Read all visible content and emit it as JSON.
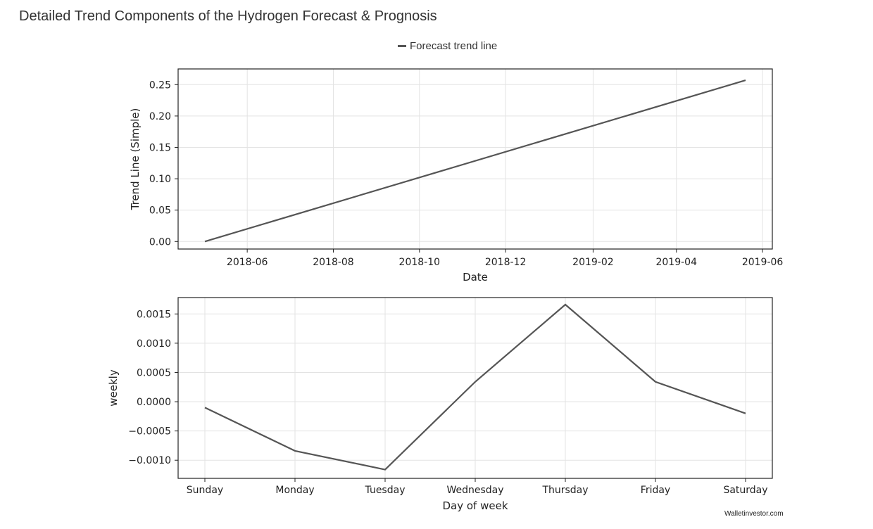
{
  "page": {
    "title": "Detailed Trend Components of the Hydrogen Forecast & Prognosis",
    "watermark": "Walletinvestor.com"
  },
  "legend": {
    "label": "Forecast trend line",
    "color": "#555555"
  },
  "chart_data": [
    {
      "type": "line",
      "xlabel": "Date",
      "ylabel": "Trend Line (Simple)",
      "x_tick_labels": [
        "2018-06",
        "2018-08",
        "2018-10",
        "2018-12",
        "2019-02",
        "2019-04",
        "2019-06"
      ],
      "y_tick_labels": [
        "0.00",
        "0.05",
        "0.10",
        "0.15",
        "0.20",
        "0.25"
      ],
      "ylim": [
        -0.012,
        0.275
      ],
      "grid": true,
      "series": [
        {
          "x": [
            "2018-05-02",
            "2019-05-20"
          ],
          "y": [
            0.0,
            0.257
          ],
          "color": "#555555"
        }
      ]
    },
    {
      "type": "line",
      "xlabel": "Day of week",
      "ylabel": "weekly",
      "categories": [
        "Sunday",
        "Monday",
        "Tuesday",
        "Wednesday",
        "Thursday",
        "Friday",
        "Saturday"
      ],
      "y_tick_labels": [
        "−0.0010",
        "−0.0005",
        "0.0000",
        "0.0005",
        "0.0010",
        "0.0015"
      ],
      "ylim": [
        -0.00131,
        0.00178
      ],
      "grid": true,
      "series": [
        {
          "values": [
            -0.0001,
            -0.00084,
            -0.00116,
            0.00034,
            0.00166,
            0.00034,
            -0.0002
          ],
          "color": "#555555"
        }
      ]
    }
  ]
}
